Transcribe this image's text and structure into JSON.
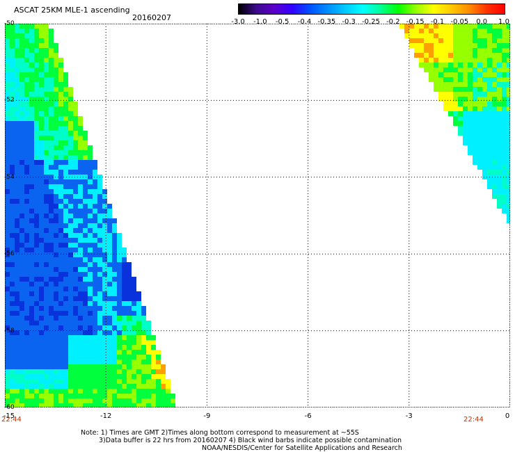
{
  "header": {
    "title": "ASCAT 25KM MLE-1 ascending",
    "date": "20160207"
  },
  "colorbar": {
    "colors": [
      "#000000",
      "#3c0a8c",
      "#5a00c8",
      "#3200ff",
      "#0050ff",
      "#008cff",
      "#00c8ff",
      "#00ffff",
      "#00ff96",
      "#00ff00",
      "#96ff00",
      "#ffff00",
      "#ffc800",
      "#ff8c00",
      "#ff3200",
      "#ff0000"
    ],
    "tick_labels": [
      "-3.0",
      "-1.0",
      "-0.5",
      "-0.4",
      "-0.35",
      "-0.3",
      "-0.25",
      "-0.2",
      "-0.15",
      "-0.1",
      "-0.05",
      "0.0",
      "1.0"
    ]
  },
  "map": {
    "lat_labels": [
      "-50",
      "-52",
      "-54",
      "-56",
      "-58",
      "-60"
    ],
    "lon_labels": [
      "-15",
      "-12",
      "-9",
      "-6",
      "-3",
      "0"
    ],
    "time_left": "22:44",
    "time_right": "22:44",
    "xlim": [
      -15,
      0
    ],
    "ylim": [
      -60,
      -50
    ],
    "grid": true,
    "swath_colors": {
      "blue_dark": "#0a32dc",
      "blue": "#0a64f0",
      "cyan": "#00f0ff",
      "aqua": "#00ffc8",
      "green": "#00ff3c",
      "lime": "#96ff00",
      "yellow": "#ffff00",
      "orange": "#ffa000"
    }
  },
  "notes": {
    "line1": "Note: 1) Times are GMT 2)Times along bottom correspond to measurement at ~55S",
    "line2": "3)Data buffer is 22 hrs from 20160207 4) Black wind barbs indicate possible contamination",
    "line3": "NOAA/NESDIS/Center for Satellite Applications and Research"
  }
}
